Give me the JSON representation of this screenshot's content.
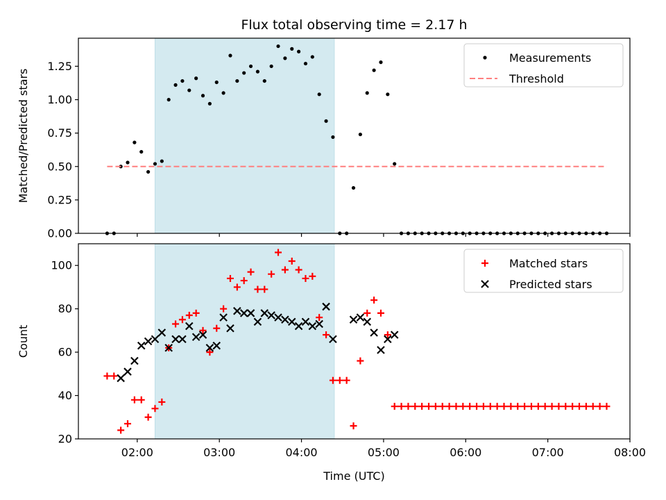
{
  "chart_data": [
    {
      "type": "scatter",
      "title": "Flux total observing time = 2.17 h",
      "xlabel": "",
      "ylabel": "Matched/Predicted stars",
      "xlim": [
        "01:17",
        "08:00"
      ],
      "ylim": [
        0,
        1.46
      ],
      "yticks": [
        0.0,
        0.25,
        0.5,
        0.75,
        1.0,
        1.25
      ],
      "ytick_labels": [
        "0.00",
        "0.25",
        "0.50",
        "0.75",
        "1.00",
        "1.25"
      ],
      "xticks": [
        "02:00",
        "03:00",
        "04:00",
        "05:00",
        "06:00",
        "07:00",
        "08:00"
      ],
      "shaded_region": {
        "from": "02:13",
        "to": "04:24",
        "color": "#d4eaf0"
      },
      "legend_position": "top-right",
      "series": [
        {
          "name": "Measurements",
          "marker": "dot",
          "color": "#000000",
          "points": [
            [
              "01:38",
              0.0
            ],
            [
              "01:43",
              0.0
            ],
            [
              "01:48",
              0.5
            ],
            [
              "01:53",
              0.53
            ],
            [
              "01:58",
              0.68
            ],
            [
              "02:03",
              0.61
            ],
            [
              "02:08",
              0.46
            ],
            [
              "02:13",
              0.52
            ],
            [
              "02:18",
              0.54
            ],
            [
              "02:23",
              1.0
            ],
            [
              "02:28",
              1.11
            ],
            [
              "02:33",
              1.14
            ],
            [
              "02:38",
              1.07
            ],
            [
              "02:43",
              1.16
            ],
            [
              "02:48",
              1.03
            ],
            [
              "02:53",
              0.97
            ],
            [
              "02:58",
              1.13
            ],
            [
              "03:03",
              1.05
            ],
            [
              "03:08",
              1.33
            ],
            [
              "03:13",
              1.14
            ],
            [
              "03:18",
              1.2
            ],
            [
              "03:23",
              1.25
            ],
            [
              "03:28",
              1.21
            ],
            [
              "03:33",
              1.14
            ],
            [
              "03:38",
              1.25
            ],
            [
              "03:43",
              1.4
            ],
            [
              "03:48",
              1.31
            ],
            [
              "03:53",
              1.38
            ],
            [
              "03:58",
              1.36
            ],
            [
              "04:03",
              1.27
            ],
            [
              "04:08",
              1.32
            ],
            [
              "04:13",
              1.04
            ],
            [
              "04:18",
              0.84
            ],
            [
              "04:23",
              0.72
            ],
            [
              "04:28",
              0.0
            ],
            [
              "04:33",
              0.0
            ],
            [
              "04:38",
              0.34
            ],
            [
              "04:43",
              0.74
            ],
            [
              "04:48",
              1.05
            ],
            [
              "04:53",
              1.22
            ],
            [
              "04:58",
              1.28
            ],
            [
              "05:03",
              1.04
            ],
            [
              "05:08",
              0.52
            ],
            [
              "05:13",
              0.0
            ],
            [
              "05:18",
              0.0
            ],
            [
              "05:23",
              0.0
            ],
            [
              "05:28",
              0.0
            ],
            [
              "05:33",
              0.0
            ],
            [
              "05:38",
              0.0
            ],
            [
              "05:43",
              0.0
            ],
            [
              "05:48",
              0.0
            ],
            [
              "05:53",
              0.0
            ],
            [
              "05:58",
              0.0
            ],
            [
              "06:03",
              0.0
            ],
            [
              "06:08",
              0.0
            ],
            [
              "06:13",
              0.0
            ],
            [
              "06:18",
              0.0
            ],
            [
              "06:23",
              0.0
            ],
            [
              "06:28",
              0.0
            ],
            [
              "06:33",
              0.0
            ],
            [
              "06:38",
              0.0
            ],
            [
              "06:43",
              0.0
            ],
            [
              "06:48",
              0.0
            ],
            [
              "06:53",
              0.0
            ],
            [
              "06:58",
              0.0
            ],
            [
              "07:03",
              0.0
            ],
            [
              "07:08",
              0.0
            ],
            [
              "07:13",
              0.0
            ],
            [
              "07:18",
              0.0
            ],
            [
              "07:23",
              0.0
            ],
            [
              "07:28",
              0.0
            ],
            [
              "07:33",
              0.0
            ],
            [
              "07:38",
              0.0
            ],
            [
              "07:43",
              0.0
            ]
          ]
        },
        {
          "name": "Threshold",
          "marker": "dashed-line",
          "color": "#ff7f7f",
          "points": [
            [
              "01:38",
              0.5
            ],
            [
              "07:43",
              0.5
            ]
          ]
        }
      ]
    },
    {
      "type": "scatter",
      "title": "",
      "xlabel": "Time (UTC)",
      "ylabel": "Count",
      "xlim": [
        "01:17",
        "08:00"
      ],
      "ylim": [
        20,
        110
      ],
      "yticks": [
        20,
        40,
        60,
        80,
        100
      ],
      "ytick_labels": [
        "20",
        "40",
        "60",
        "80",
        "100"
      ],
      "xticks": [
        "02:00",
        "03:00",
        "04:00",
        "05:00",
        "06:00",
        "07:00",
        "08:00"
      ],
      "xtick_labels": [
        "02:00",
        "03:00",
        "04:00",
        "05:00",
        "06:00",
        "07:00",
        "08:00"
      ],
      "shaded_region": {
        "from": "02:13",
        "to": "04:24",
        "color": "#d4eaf0"
      },
      "legend_position": "top-right",
      "series": [
        {
          "name": "Matched stars",
          "marker": "plus",
          "color": "#ff0000",
          "points": [
            [
              "01:38",
              49
            ],
            [
              "01:43",
              49
            ],
            [
              "01:48",
              24
            ],
            [
              "01:53",
              27
            ],
            [
              "01:58",
              38
            ],
            [
              "02:03",
              38
            ],
            [
              "02:08",
              30
            ],
            [
              "02:13",
              34
            ],
            [
              "02:18",
              37
            ],
            [
              "02:23",
              62
            ],
            [
              "02:28",
              73
            ],
            [
              "02:33",
              75
            ],
            [
              "02:38",
              77
            ],
            [
              "02:43",
              78
            ],
            [
              "02:48",
              70
            ],
            [
              "02:53",
              60
            ],
            [
              "02:58",
              71
            ],
            [
              "03:03",
              80
            ],
            [
              "03:08",
              94
            ],
            [
              "03:13",
              90
            ],
            [
              "03:18",
              93
            ],
            [
              "03:23",
              97
            ],
            [
              "03:28",
              89
            ],
            [
              "03:33",
              89
            ],
            [
              "03:38",
              96
            ],
            [
              "03:43",
              106
            ],
            [
              "03:48",
              98
            ],
            [
              "03:53",
              102
            ],
            [
              "03:58",
              98
            ],
            [
              "04:03",
              94
            ],
            [
              "04:08",
              95
            ],
            [
              "04:13",
              76
            ],
            [
              "04:18",
              68
            ],
            [
              "04:23",
              47
            ],
            [
              "04:28",
              47
            ],
            [
              "04:33",
              47
            ],
            [
              "04:38",
              26
            ],
            [
              "04:43",
              56
            ],
            [
              "04:48",
              78
            ],
            [
              "04:53",
              84
            ],
            [
              "04:58",
              78
            ],
            [
              "05:03",
              68
            ],
            [
              "05:08",
              35
            ],
            [
              "05:13",
              35
            ],
            [
              "05:18",
              35
            ],
            [
              "05:23",
              35
            ],
            [
              "05:28",
              35
            ],
            [
              "05:33",
              35
            ],
            [
              "05:38",
              35
            ],
            [
              "05:43",
              35
            ],
            [
              "05:48",
              35
            ],
            [
              "05:53",
              35
            ],
            [
              "05:58",
              35
            ],
            [
              "06:03",
              35
            ],
            [
              "06:08",
              35
            ],
            [
              "06:13",
              35
            ],
            [
              "06:18",
              35
            ],
            [
              "06:23",
              35
            ],
            [
              "06:28",
              35
            ],
            [
              "06:33",
              35
            ],
            [
              "06:38",
              35
            ],
            [
              "06:43",
              35
            ],
            [
              "06:48",
              35
            ],
            [
              "06:53",
              35
            ],
            [
              "06:58",
              35
            ],
            [
              "07:03",
              35
            ],
            [
              "07:08",
              35
            ],
            [
              "07:13",
              35
            ],
            [
              "07:18",
              35
            ],
            [
              "07:23",
              35
            ],
            [
              "07:28",
              35
            ],
            [
              "07:33",
              35
            ],
            [
              "07:38",
              35
            ],
            [
              "07:43",
              35
            ]
          ]
        },
        {
          "name": "Predicted stars",
          "marker": "x",
          "color": "#000000",
          "points": [
            [
              "01:48",
              48
            ],
            [
              "01:53",
              51
            ],
            [
              "01:58",
              56
            ],
            [
              "02:03",
              63
            ],
            [
              "02:08",
              65
            ],
            [
              "02:13",
              66
            ],
            [
              "02:18",
              69
            ],
            [
              "02:23",
              62
            ],
            [
              "02:28",
              66
            ],
            [
              "02:33",
              66
            ],
            [
              "02:38",
              72
            ],
            [
              "02:43",
              67
            ],
            [
              "02:48",
              68
            ],
            [
              "02:53",
              62
            ],
            [
              "02:58",
              63
            ],
            [
              "03:03",
              76
            ],
            [
              "03:08",
              71
            ],
            [
              "03:13",
              79
            ],
            [
              "03:18",
              78
            ],
            [
              "03:23",
              78
            ],
            [
              "03:28",
              74
            ],
            [
              "03:33",
              78
            ],
            [
              "03:38",
              77
            ],
            [
              "03:43",
              76
            ],
            [
              "03:48",
              75
            ],
            [
              "03:53",
              74
            ],
            [
              "03:58",
              72
            ],
            [
              "04:03",
              74
            ],
            [
              "04:08",
              72
            ],
            [
              "04:13",
              73
            ],
            [
              "04:18",
              81
            ],
            [
              "04:23",
              66
            ],
            [
              "04:38",
              75
            ],
            [
              "04:43",
              76
            ],
            [
              "04:48",
              74
            ],
            [
              "04:53",
              69
            ],
            [
              "04:58",
              61
            ],
            [
              "05:03",
              66
            ],
            [
              "05:08",
              68
            ]
          ]
        }
      ]
    }
  ]
}
